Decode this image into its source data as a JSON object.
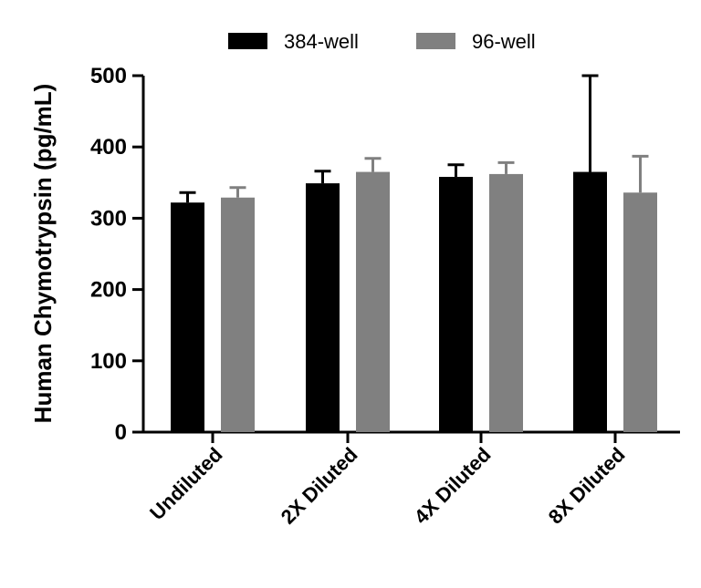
{
  "chart_data": {
    "type": "bar",
    "ylabel": "Human Chymotrypsin (pg/mL)",
    "xlabel": "",
    "ylim": [
      0,
      500
    ],
    "yticks": [
      0,
      100,
      200,
      300,
      400,
      500
    ],
    "categories": [
      "Undiluted",
      "2X Diluted",
      "4X Diluted",
      "8X Diluted"
    ],
    "series": [
      {
        "name": "384-well",
        "color": "#000000",
        "values": [
          322,
          349,
          358,
          365
        ],
        "errors": [
          14,
          17,
          17,
          135
        ]
      },
      {
        "name": "96-well",
        "color": "#808080",
        "values": [
          329,
          365,
          362,
          336
        ],
        "errors": [
          14,
          19,
          16,
          51
        ]
      }
    ],
    "legend_position": "top",
    "grid": false
  }
}
